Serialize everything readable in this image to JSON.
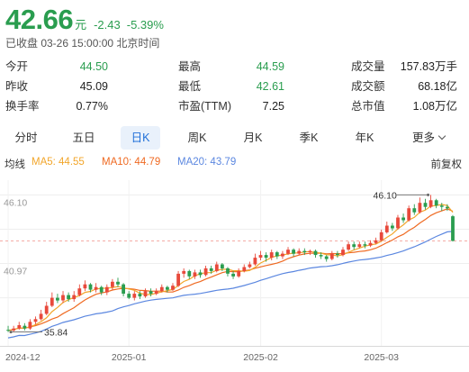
{
  "quote": {
    "price": "42.66",
    "unit": "元",
    "change": "-2.43",
    "change_pct": "-5.39%",
    "status": "已收盘 03-26 15:00:00 北京时间"
  },
  "stats": [
    {
      "label": "今开",
      "value": "44.50",
      "color": "green"
    },
    {
      "label": "最高",
      "value": "44.59",
      "color": "green"
    },
    {
      "label": "成交量",
      "value": "157.83万手",
      "color": "plain"
    },
    {
      "label": "昨收",
      "value": "45.09",
      "color": "plain"
    },
    {
      "label": "最低",
      "value": "42.61",
      "color": "green"
    },
    {
      "label": "成交额",
      "value": "68.18亿",
      "color": "plain"
    },
    {
      "label": "换手率",
      "value": "0.77%",
      "color": "plain"
    },
    {
      "label": "市盈(TTM)",
      "value": "7.25",
      "color": "plain"
    },
    {
      "label": "总市值",
      "value": "1.08万亿",
      "color": "plain"
    }
  ],
  "tabs": [
    {
      "label": "分时",
      "active": false
    },
    {
      "label": "五日",
      "active": false
    },
    {
      "label": "日K",
      "active": true
    },
    {
      "label": "周K",
      "active": false
    },
    {
      "label": "月K",
      "active": false
    },
    {
      "label": "季K",
      "active": false
    },
    {
      "label": "年K",
      "active": false
    },
    {
      "label": "更多",
      "active": false
    }
  ],
  "ma_legend": {
    "title": "均线",
    "ma5": "MA5: 44.55",
    "ma10": "MA10: 44.79",
    "ma20": "MA20: 43.79",
    "adjust": "前复权"
  },
  "colors": {
    "up": "#e8493b",
    "down": "#2a9d4f",
    "ma5": "#f2a62b",
    "ma10": "#ef6a22",
    "ma20": "#5b87e0",
    "accent": "#1f6fd8"
  },
  "chart_data": {
    "type": "candlestick",
    "y_ticks": [
      "46.10",
      "40.97"
    ],
    "ylim": [
      34.8,
      47.2
    ],
    "x_labels": [
      "2024-12",
      "2025-01",
      "2025-02",
      "2025-03"
    ],
    "x_label_index": [
      0,
      22,
      46,
      68
    ],
    "high_annotation": "46.10",
    "low_annotation": "35.84",
    "reference_price": 42.66,
    "candles": [
      [
        36.0,
        35.95,
        36.3,
        35.84
      ],
      [
        35.95,
        36.1,
        36.3,
        35.85
      ],
      [
        36.1,
        36.35,
        36.6,
        36.0
      ],
      [
        36.3,
        36.1,
        36.5,
        35.95
      ],
      [
        36.1,
        36.6,
        36.8,
        36.0
      ],
      [
        36.6,
        36.8,
        37.0,
        36.4
      ],
      [
        36.8,
        37.2,
        37.5,
        36.7
      ],
      [
        37.2,
        37.8,
        38.1,
        37.1
      ],
      [
        37.8,
        38.4,
        38.8,
        37.7
      ],
      [
        38.4,
        38.2,
        38.7,
        38.0
      ],
      [
        38.2,
        38.6,
        38.9,
        38.0
      ],
      [
        38.6,
        38.3,
        38.8,
        38.1
      ],
      [
        38.3,
        38.6,
        38.9,
        38.1
      ],
      [
        38.6,
        39.1,
        39.4,
        38.5
      ],
      [
        39.1,
        39.4,
        39.7,
        38.9
      ],
      [
        39.4,
        39.0,
        39.5,
        38.8
      ],
      [
        39.0,
        39.2,
        39.5,
        38.8
      ],
      [
        39.2,
        38.8,
        39.3,
        38.6
      ],
      [
        38.8,
        39.2,
        39.4,
        38.6
      ],
      [
        39.2,
        39.6,
        39.8,
        39.0
      ],
      [
        39.6,
        39.4,
        39.9,
        39.2
      ],
      [
        39.4,
        38.7,
        39.5,
        38.5
      ],
      [
        38.7,
        38.4,
        38.9,
        38.3
      ],
      [
        38.4,
        38.7,
        38.9,
        38.2
      ],
      [
        38.7,
        38.5,
        38.9,
        38.3
      ],
      [
        38.5,
        38.9,
        39.1,
        38.4
      ],
      [
        38.9,
        38.7,
        39.1,
        38.5
      ],
      [
        38.7,
        38.9,
        39.1,
        38.6
      ],
      [
        38.9,
        39.2,
        39.4,
        38.8
      ],
      [
        39.2,
        39.0,
        39.3,
        38.8
      ],
      [
        39.0,
        39.3,
        39.5,
        38.9
      ],
      [
        39.3,
        40.2,
        40.4,
        39.2
      ],
      [
        40.2,
        40.4,
        40.6,
        39.9
      ],
      [
        40.4,
        40.0,
        40.5,
        39.8
      ],
      [
        40.0,
        40.3,
        40.5,
        39.8
      ],
      [
        40.3,
        40.1,
        40.5,
        39.9
      ],
      [
        40.1,
        40.6,
        40.8,
        40.0
      ],
      [
        40.6,
        40.4,
        40.8,
        40.2
      ],
      [
        40.4,
        40.9,
        41.1,
        40.3
      ],
      [
        40.9,
        40.6,
        41.0,
        40.4
      ],
      [
        40.6,
        40.2,
        40.7,
        40.0
      ],
      [
        40.2,
        40.0,
        40.4,
        39.8
      ],
      [
        40.0,
        40.4,
        40.6,
        39.9
      ],
      [
        40.4,
        40.7,
        40.9,
        40.3
      ],
      [
        40.7,
        40.9,
        41.1,
        40.6
      ],
      [
        40.9,
        41.4,
        41.7,
        40.8
      ],
      [
        41.4,
        41.6,
        41.9,
        41.2
      ],
      [
        41.6,
        41.4,
        41.8,
        41.1
      ],
      [
        41.4,
        41.8,
        42.0,
        41.2
      ],
      [
        41.8,
        41.5,
        41.9,
        41.3
      ],
      [
        41.5,
        41.7,
        41.9,
        41.3
      ],
      [
        41.7,
        42.0,
        42.2,
        41.6
      ],
      [
        42.0,
        41.7,
        42.1,
        41.5
      ],
      [
        41.7,
        41.9,
        42.1,
        41.6
      ],
      [
        41.9,
        41.8,
        42.1,
        41.6
      ],
      [
        41.8,
        41.9,
        42.0,
        41.6
      ],
      [
        41.9,
        41.6,
        42.0,
        41.4
      ],
      [
        41.6,
        41.5,
        41.8,
        41.3
      ],
      [
        41.5,
        41.3,
        41.6,
        41.1
      ],
      [
        41.3,
        41.7,
        41.9,
        41.2
      ],
      [
        41.7,
        41.6,
        41.9,
        41.4
      ],
      [
        41.6,
        42.0,
        42.2,
        41.5
      ],
      [
        42.0,
        42.4,
        42.6,
        41.9
      ],
      [
        42.4,
        42.2,
        42.6,
        42.0
      ],
      [
        42.2,
        42.4,
        42.6,
        42.1
      ],
      [
        42.4,
        42.3,
        42.6,
        42.1
      ],
      [
        42.3,
        42.5,
        42.7,
        42.2
      ],
      [
        42.5,
        42.7,
        42.9,
        42.4
      ],
      [
        42.7,
        43.3,
        43.5,
        42.6
      ],
      [
        43.3,
        43.8,
        44.1,
        43.2
      ],
      [
        43.8,
        43.6,
        44.0,
        43.4
      ],
      [
        43.6,
        44.4,
        44.6,
        43.5
      ],
      [
        44.4,
        44.2,
        44.7,
        44.0
      ],
      [
        44.2,
        45.1,
        45.3,
        44.1
      ],
      [
        45.1,
        44.8,
        45.4,
        44.6
      ],
      [
        44.8,
        45.5,
        45.9,
        44.7
      ],
      [
        45.5,
        45.2,
        45.8,
        45.0
      ],
      [
        45.2,
        45.7,
        46.1,
        45.1
      ],
      [
        45.7,
        45.3,
        45.8,
        45.1
      ],
      [
        45.3,
        45.2,
        45.5,
        44.9
      ],
      [
        45.2,
        45.09,
        45.4,
        44.9
      ],
      [
        44.5,
        42.66,
        44.59,
        42.61
      ]
    ]
  }
}
